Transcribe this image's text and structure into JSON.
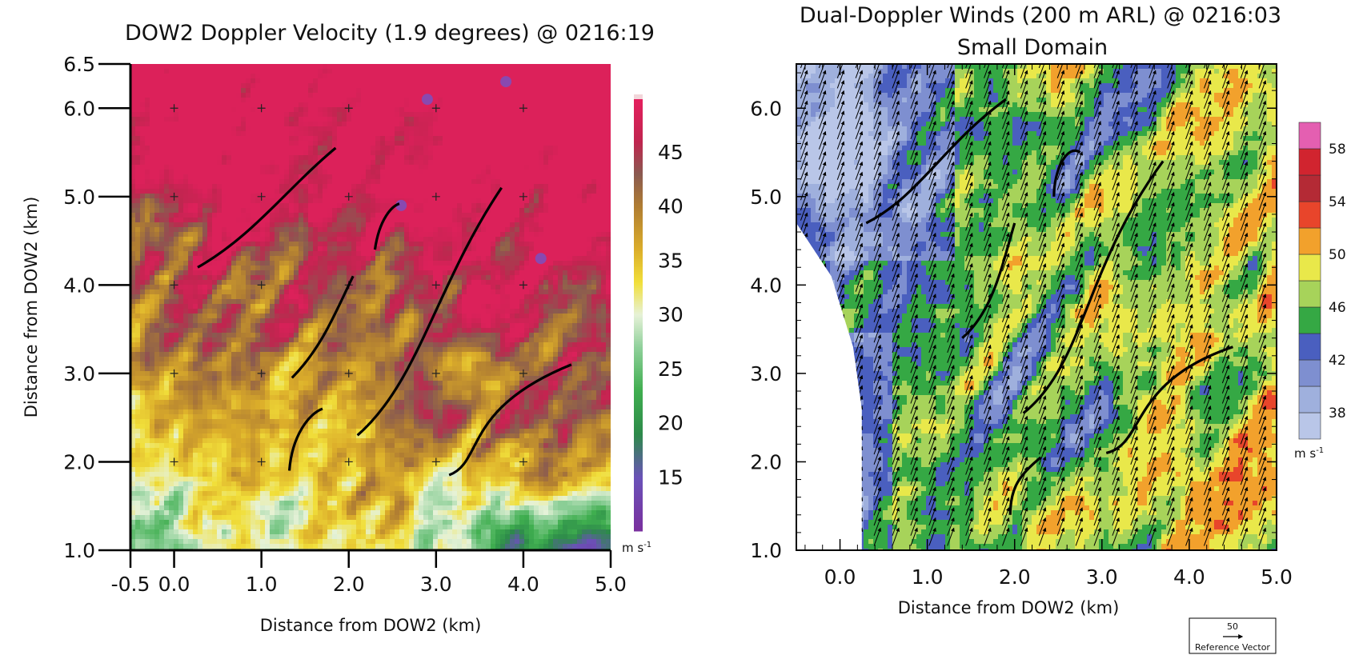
{
  "chart_data": [
    {
      "type": "heatmap",
      "title": "DOW2 Doppler Velocity (1.9 degrees) @ 0216:19",
      "xlabel": "Distance from DOW2 (km)",
      "ylabel": "Distance from DOW2 (km)",
      "xlim": [
        -0.5,
        5.0
      ],
      "ylim": [
        1.0,
        6.5
      ],
      "xticks": [
        {
          "v": -0.5,
          "label": "-0.5"
        },
        {
          "v": 0.0,
          "label": "0.0"
        },
        {
          "v": 1.0,
          "label": "1.0"
        },
        {
          "v": 2.0,
          "label": "2.0"
        },
        {
          "v": 3.0,
          "label": "3.0"
        },
        {
          "v": 4.0,
          "label": "4.0"
        },
        {
          "v": 5.0,
          "label": "5.0"
        }
      ],
      "yticks": [
        {
          "v": 1.0,
          "label": "1.0"
        },
        {
          "v": 2.0,
          "label": "2.0"
        },
        {
          "v": 3.0,
          "label": "3.0"
        },
        {
          "v": 4.0,
          "label": "4.0"
        },
        {
          "v": 5.0,
          "label": "5.0"
        },
        {
          "v": 6.0,
          "label": "6.0"
        },
        {
          "v": 6.5,
          "label": "6.5"
        }
      ],
      "colorbar": {
        "labels": [
          "45",
          "40",
          "35",
          "30",
          "25",
          "20",
          "15"
        ],
        "label_values": [
          45,
          40,
          35,
          30,
          25,
          20,
          15
        ],
        "range": [
          10,
          50
        ],
        "unit_text": "m s",
        "unit_exp": "-1",
        "stops": [
          {
            "v": 10,
            "color": "#7a2f9e"
          },
          {
            "v": 15,
            "color": "#6a52b8"
          },
          {
            "v": 19,
            "color": "#2d8a4a"
          },
          {
            "v": 23,
            "color": "#3fae4f"
          },
          {
            "v": 27,
            "color": "#8fd09a"
          },
          {
            "v": 30,
            "color": "#e6f2d8"
          },
          {
            "v": 33,
            "color": "#f1df3a"
          },
          {
            "v": 36,
            "color": "#dcae2a"
          },
          {
            "v": 40,
            "color": "#b07d32"
          },
          {
            "v": 43,
            "color": "#8a5a50"
          },
          {
            "v": 46,
            "color": "#c0254f"
          },
          {
            "v": 50,
            "color": "#e51f5e"
          }
        ]
      },
      "grid_markers": "plus signs at integer km",
      "annotations": "black curved lines marking features"
    },
    {
      "type": "heatmap",
      "title": "Dual-Doppler Winds (200 m ARL) @ 0216:03",
      "subtitle": "Small Domain",
      "xlabel": "Distance from DOW2 (km)",
      "ylabel": "",
      "xlim": [
        -0.5,
        5.0
      ],
      "ylim": [
        1.0,
        6.5
      ],
      "xticks": [
        {
          "v": 0.0,
          "label": "0.0"
        },
        {
          "v": 1.0,
          "label": "1.0"
        },
        {
          "v": 2.0,
          "label": "2.0"
        },
        {
          "v": 3.0,
          "label": "3.0"
        },
        {
          "v": 4.0,
          "label": "4.0"
        },
        {
          "v": 5.0,
          "label": "5.0"
        }
      ],
      "yticks": [
        {
          "v": 1.0,
          "label": "1.0"
        },
        {
          "v": 2.0,
          "label": "2.0"
        },
        {
          "v": 3.0,
          "label": "3.0"
        },
        {
          "v": 4.0,
          "label": "4.0"
        },
        {
          "v": 5.0,
          "label": "5.0"
        },
        {
          "v": 6.0,
          "label": "6.0"
        }
      ],
      "colorbar": {
        "labels": [
          "58",
          "54",
          "50",
          "46",
          "42",
          "38"
        ],
        "label_values": [
          58,
          54,
          50,
          46,
          42,
          38
        ],
        "levels": [
          {
            "lo": 36,
            "hi": 38,
            "color": "#b9c6e8"
          },
          {
            "lo": 38,
            "hi": 40,
            "color": "#9fb0dd"
          },
          {
            "lo": 40,
            "hi": 42,
            "color": "#7e8fd0"
          },
          {
            "lo": 42,
            "hi": 44,
            "color": "#4a5fbf"
          },
          {
            "lo": 44,
            "hi": 46,
            "color": "#35a844"
          },
          {
            "lo": 46,
            "hi": 48,
            "color": "#a7d35a"
          },
          {
            "lo": 48,
            "hi": 50,
            "color": "#e9e84a"
          },
          {
            "lo": 50,
            "hi": 52,
            "color": "#f2a12c"
          },
          {
            "lo": 52,
            "hi": 54,
            "color": "#e8452b"
          },
          {
            "lo": 54,
            "hi": 56,
            "color": "#b42a35"
          },
          {
            "lo": 56,
            "hi": 58,
            "color": "#d1242f"
          },
          {
            "lo": 58,
            "hi": 60,
            "color": "#e45fb1"
          }
        ],
        "unit_text": "m s",
        "unit_exp": "-1"
      },
      "vectors": "wind vectors toward north-northeast",
      "reference_vector": {
        "value": "50",
        "label": "Reference Vector"
      },
      "annotations": "black curved lines marking features"
    }
  ],
  "colors": {
    "curve": "#000000",
    "axis": "#000000"
  }
}
